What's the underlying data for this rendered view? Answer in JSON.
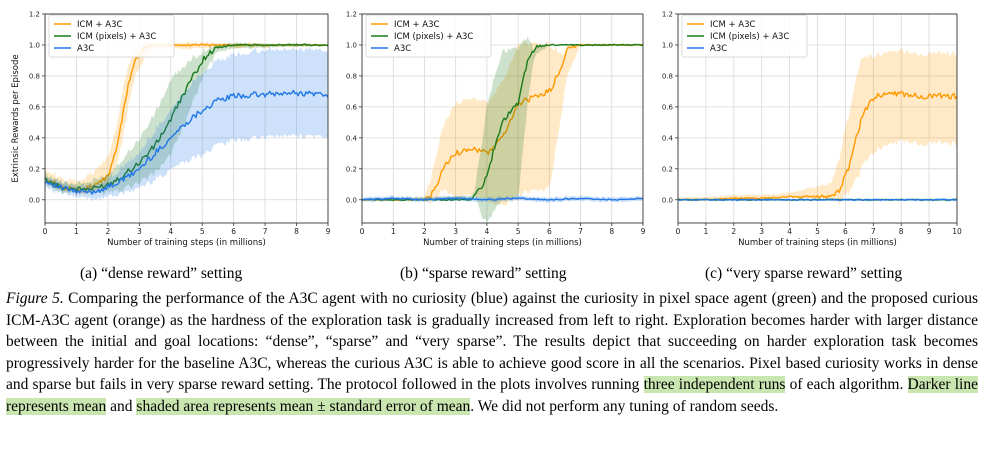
{
  "colors": {
    "icm": "#ff9900",
    "pixels": "#1a7a1a",
    "a3c": "#1f77e8",
    "highlight": "#c9e6b0"
  },
  "chart_data": [
    {
      "type": "line",
      "ylabel": "Extrinsic Rewards per Episode",
      "xlabel": "Number of training steps (in millions)",
      "xlim": [
        0,
        9
      ],
      "ylim": [
        -0.15,
        1.2
      ],
      "xticks": [
        "0",
        "1",
        "2",
        "3",
        "4",
        "5",
        "6",
        "7",
        "8",
        "9"
      ],
      "yticks": [
        "0.0",
        "0.2",
        "0.4",
        "0.6",
        "0.8",
        "1.0",
        "1.2"
      ],
      "legend_position": "top-left",
      "series": [
        {
          "name": "ICM + A3C",
          "points": [
            [
              0,
              0.15
            ],
            [
              0.5,
              0.08
            ],
            [
              1,
              0.06
            ],
            [
              1.5,
              0.08
            ],
            [
              2,
              0.15
            ],
            [
              2.3,
              0.35
            ],
            [
              2.6,
              0.7
            ],
            [
              2.9,
              0.92
            ],
            [
              3.2,
              0.99
            ],
            [
              3.6,
              1.0
            ],
            [
              4,
              1.0
            ],
            [
              9,
              1.0
            ]
          ],
          "band": [
            [
              0,
              0.02,
              0.05
            ],
            [
              1,
              0.02,
              0.05
            ],
            [
              1.5,
              0.03,
              0.08
            ],
            [
              2,
              0.05,
              0.12
            ],
            [
              2.5,
              0.15,
              0.15
            ],
            [
              3,
              0.08,
              0.03
            ],
            [
              3.5,
              0.02,
              0.01
            ],
            [
              9,
              0.0,
              0.0
            ]
          ]
        },
        {
          "name": "ICM (pixels) + A3C",
          "points": [
            [
              0,
              0.13
            ],
            [
              0.5,
              0.08
            ],
            [
              1,
              0.07
            ],
            [
              1.5,
              0.07
            ],
            [
              2,
              0.1
            ],
            [
              2.5,
              0.16
            ],
            [
              3,
              0.24
            ],
            [
              3.5,
              0.35
            ],
            [
              4,
              0.52
            ],
            [
              4.5,
              0.72
            ],
            [
              5,
              0.9
            ],
            [
              5.4,
              0.98
            ],
            [
              6,
              1.0
            ],
            [
              9,
              1.0
            ]
          ],
          "band": [
            [
              0,
              0.02,
              0.03
            ],
            [
              1,
              0.02,
              0.03
            ],
            [
              2,
              0.04,
              0.06
            ],
            [
              3,
              0.12,
              0.15
            ],
            [
              4,
              0.22,
              0.25
            ],
            [
              4.5,
              0.2,
              0.15
            ],
            [
              5,
              0.1,
              0.05
            ],
            [
              5.5,
              0.02,
              0.01
            ],
            [
              9,
              0.0,
              0.0
            ]
          ]
        },
        {
          "name": "A3C",
          "points": [
            [
              0,
              0.12
            ],
            [
              0.5,
              0.08
            ],
            [
              1,
              0.05
            ],
            [
              1.5,
              0.05
            ],
            [
              2,
              0.08
            ],
            [
              2.5,
              0.13
            ],
            [
              3,
              0.2
            ],
            [
              3.5,
              0.3
            ],
            [
              4,
              0.4
            ],
            [
              4.5,
              0.5
            ],
            [
              5,
              0.58
            ],
            [
              5.5,
              0.64
            ],
            [
              6,
              0.67
            ],
            [
              7,
              0.68
            ],
            [
              8,
              0.69
            ],
            [
              9,
              0.68
            ]
          ],
          "band": [
            [
              0,
              0.03,
              0.03
            ],
            [
              1,
              0.03,
              0.03
            ],
            [
              2,
              0.05,
              0.05
            ],
            [
              3,
              0.12,
              0.1
            ],
            [
              4,
              0.2,
              0.18
            ],
            [
              5,
              0.28,
              0.24
            ],
            [
              6,
              0.28,
              0.26
            ],
            [
              7,
              0.27,
              0.28
            ],
            [
              9,
              0.27,
              0.28
            ]
          ]
        }
      ]
    },
    {
      "type": "line",
      "ylabel": "",
      "xlabel": "Number of training steps (in millions)",
      "xlim": [
        0,
        9
      ],
      "ylim": [
        -0.15,
        1.2
      ],
      "xticks": [
        "0",
        "1",
        "2",
        "3",
        "4",
        "5",
        "6",
        "7",
        "8",
        "9"
      ],
      "yticks": [
        "0.0",
        "0.2",
        "0.4",
        "0.6",
        "0.8",
        "1.0",
        "1.2"
      ],
      "legend_position": "top-left",
      "series": [
        {
          "name": "ICM + A3C",
          "points": [
            [
              0,
              0.0
            ],
            [
              1,
              0.0
            ],
            [
              2,
              0.0
            ],
            [
              2.3,
              0.05
            ],
            [
              2.6,
              0.2
            ],
            [
              3,
              0.3
            ],
            [
              3.5,
              0.33
            ],
            [
              4,
              0.3
            ],
            [
              4.5,
              0.4
            ],
            [
              5,
              0.62
            ],
            [
              5.5,
              0.66
            ],
            [
              6,
              0.7
            ],
            [
              6.3,
              0.82
            ],
            [
              6.6,
              0.98
            ],
            [
              7,
              1.0
            ],
            [
              9,
              1.0
            ]
          ],
          "band": [
            [
              0,
              0.0,
              0.0
            ],
            [
              2,
              0.0,
              0.01
            ],
            [
              2.5,
              0.1,
              0.25
            ],
            [
              3,
              0.28,
              0.32
            ],
            [
              4,
              0.3,
              0.32
            ],
            [
              5,
              0.58,
              0.38
            ],
            [
              6,
              0.62,
              0.3
            ],
            [
              6.5,
              0.2,
              0.02
            ],
            [
              7,
              0.0,
              0.0
            ],
            [
              9,
              0.0,
              0.0
            ]
          ]
        },
        {
          "name": "ICM (pixels) + A3C",
          "points": [
            [
              0,
              0.0
            ],
            [
              3.5,
              0.0
            ],
            [
              3.9,
              0.1
            ],
            [
              4.2,
              0.3
            ],
            [
              4.5,
              0.5
            ],
            [
              5,
              0.62
            ],
            [
              5.3,
              0.9
            ],
            [
              5.6,
              0.99
            ],
            [
              6,
              1.0
            ],
            [
              9,
              1.0
            ]
          ],
          "band": [
            [
              0,
              0.0,
              0.0
            ],
            [
              3.6,
              0.0,
              0.02
            ],
            [
              4,
              0.3,
              0.45
            ],
            [
              4.5,
              0.5,
              0.45
            ],
            [
              5,
              0.62,
              0.35
            ],
            [
              5.5,
              0.05,
              0.01
            ],
            [
              6,
              0.0,
              0.0
            ],
            [
              9,
              0.0,
              0.0
            ]
          ]
        },
        {
          "name": "A3C",
          "points": [
            [
              0,
              0.0
            ],
            [
              1,
              0.01
            ],
            [
              2,
              0.0
            ],
            [
              3,
              0.01
            ],
            [
              4,
              0.0
            ],
            [
              5,
              0.01
            ],
            [
              6,
              0.0
            ],
            [
              7,
              0.01
            ],
            [
              8,
              0.0
            ],
            [
              9,
              0.01
            ]
          ],
          "band": [
            [
              0,
              0.01,
              0.01
            ],
            [
              9,
              0.01,
              0.01
            ]
          ]
        }
      ]
    },
    {
      "type": "line",
      "ylabel": "",
      "xlabel": "Number of training steps (in millions)",
      "xlim": [
        0,
        10
      ],
      "ylim": [
        -0.15,
        1.2
      ],
      "xticks": [
        "0",
        "1",
        "2",
        "3",
        "4",
        "5",
        "6",
        "7",
        "8",
        "9",
        "10"
      ],
      "yticks": [
        "0.0",
        "0.2",
        "0.4",
        "0.6",
        "0.8",
        "1.0",
        "1.2"
      ],
      "legend_position": "top-left",
      "series": [
        {
          "name": "ICM + A3C",
          "points": [
            [
              0,
              0.0
            ],
            [
              1,
              0.0
            ],
            [
              2,
              0.01
            ],
            [
              3,
              0.01
            ],
            [
              4,
              0.02
            ],
            [
              5,
              0.02
            ],
            [
              5.5,
              0.03
            ],
            [
              5.8,
              0.06
            ],
            [
              6.1,
              0.2
            ],
            [
              6.4,
              0.42
            ],
            [
              6.7,
              0.58
            ],
            [
              7,
              0.66
            ],
            [
              7.5,
              0.68
            ],
            [
              8,
              0.68
            ],
            [
              9,
              0.67
            ],
            [
              10,
              0.67
            ]
          ],
          "band": [
            [
              0,
              0.0,
              0.01
            ],
            [
              4,
              0.0,
              0.02
            ],
            [
              5.5,
              0.02,
              0.08
            ],
            [
              6,
              0.12,
              0.3
            ],
            [
              6.5,
              0.3,
              0.4
            ],
            [
              7,
              0.35,
              0.26
            ],
            [
              8,
              0.3,
              0.27
            ],
            [
              10,
              0.3,
              0.27
            ]
          ]
        },
        {
          "name": "ICM (pixels) + A3C",
          "points": [
            [
              0,
              0.0
            ],
            [
              10,
              0.0
            ]
          ],
          "band": [
            [
              0,
              0.0,
              0.0
            ],
            [
              10,
              0.0,
              0.0
            ]
          ]
        },
        {
          "name": "A3C",
          "points": [
            [
              0,
              0.0
            ],
            [
              10,
              0.0
            ]
          ],
          "band": [
            [
              0,
              0.0,
              0.0
            ],
            [
              10,
              0.0,
              0.0
            ]
          ]
        }
      ]
    }
  ],
  "subcaptions": [
    "(a) “dense reward” setting",
    "(b) “sparse reward” setting",
    "(c) “very sparse reward” setting"
  ],
  "caption": {
    "label": "Figure 5.",
    "text_1": " Comparing the performance of the A3C agent with no curiosity (blue) against the curiosity in pixel space agent (green) and the proposed curious ICM-A3C agent (orange) as the hardness of the exploration task is gradually increased from left to right. Exploration becomes harder with larger distance between the initial and goal locations: “dense”, “sparse” and “very sparse”. The results depict that succeeding on harder exploration task becomes progressively harder for the baseline A3C, whereas the curious A3C is able to achieve good score in all the scenarios. Pixel based curiosity works in dense and sparse but fails in very sparse reward setting. The protocol followed in the plots involves running ",
    "hl_1": "three independent runs",
    "text_2": " of each algorithm. ",
    "hl_2": "Darker line represents mean",
    "text_3": " and ",
    "hl_3": "shaded area represents mean ± standard error of mean",
    "text_4": ". We did not perform any tuning of random seeds."
  }
}
